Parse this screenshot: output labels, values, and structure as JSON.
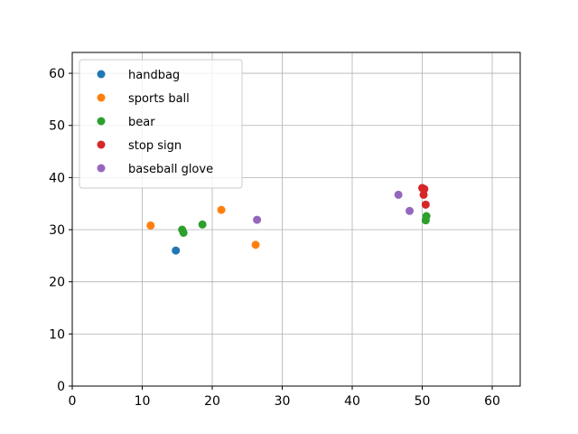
{
  "chart_data": {
    "type": "scatter",
    "title": "",
    "xlabel": "",
    "ylabel": "",
    "xlim": [
      0,
      64
    ],
    "ylim": [
      0,
      64
    ],
    "xticks": [
      0,
      10,
      20,
      30,
      40,
      50,
      60
    ],
    "yticks": [
      0,
      10,
      20,
      30,
      40,
      50,
      60
    ],
    "grid": true,
    "legend_position": "top-left",
    "series": [
      {
        "name": "handbag",
        "color": "#1f77b4",
        "points": [
          [
            14.8,
            26.0
          ]
        ]
      },
      {
        "name": "sports ball",
        "color": "#ff7f0e",
        "points": [
          [
            11.2,
            30.8
          ],
          [
            21.3,
            33.8
          ],
          [
            26.2,
            27.1
          ]
        ]
      },
      {
        "name": "bear",
        "color": "#2ca02c",
        "points": [
          [
            15.7,
            30.0
          ],
          [
            15.9,
            29.4
          ],
          [
            18.6,
            31.0
          ],
          [
            50.6,
            32.6
          ],
          [
            50.5,
            31.8
          ]
        ]
      },
      {
        "name": "stop sign",
        "color": "#d62728",
        "points": [
          [
            50.0,
            38.0
          ],
          [
            50.3,
            37.8
          ],
          [
            50.2,
            36.7
          ],
          [
            50.5,
            34.8
          ]
        ]
      },
      {
        "name": "baseball glove",
        "color": "#9467bd",
        "points": [
          [
            26.4,
            31.9
          ],
          [
            46.6,
            36.7
          ],
          [
            48.2,
            33.6
          ]
        ]
      }
    ]
  }
}
